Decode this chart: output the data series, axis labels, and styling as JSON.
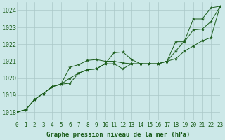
{
  "xlabel": "Graphe pression niveau de la mer (hPa)",
  "background_color": "#cce8e8",
  "grid_color": "#aac8c8",
  "line_color": "#1a5c1a",
  "xlim": [
    0,
    23
  ],
  "ylim": [
    1017.5,
    1024.5
  ],
  "yticks": [
    1018,
    1019,
    1020,
    1021,
    1022,
    1023,
    1024
  ],
  "xticks": [
    0,
    1,
    2,
    3,
    4,
    5,
    6,
    7,
    8,
    9,
    10,
    11,
    12,
    13,
    14,
    15,
    16,
    17,
    18,
    19,
    20,
    21,
    22,
    23
  ],
  "series": [
    {
      "x": [
        0,
        1,
        2,
        3,
        4,
        5,
        6,
        7,
        8,
        9,
        10,
        11,
        12,
        13,
        14,
        15,
        16,
        17,
        18,
        19,
        20,
        21,
        22,
        23
      ],
      "y": [
        1018.0,
        1018.15,
        1018.75,
        1019.1,
        1019.5,
        1019.65,
        1020.65,
        1020.8,
        1021.05,
        1021.1,
        1021.0,
        1021.0,
        1020.9,
        1020.85,
        1020.85,
        1020.85,
        1020.85,
        1021.0,
        1021.6,
        1022.2,
        1023.5,
        1023.5,
        1024.15,
        1024.25
      ]
    },
    {
      "x": [
        0,
        1,
        2,
        3,
        4,
        5,
        6,
        7,
        8,
        9,
        10,
        11,
        12,
        13,
        14,
        15,
        16,
        17,
        18,
        19,
        20,
        21,
        22,
        23
      ],
      "y": [
        1018.0,
        1018.15,
        1018.75,
        1019.1,
        1019.5,
        1019.65,
        1020.0,
        1020.3,
        1020.5,
        1020.55,
        1020.85,
        1021.5,
        1021.55,
        1021.1,
        1020.85,
        1020.85,
        1020.85,
        1021.0,
        1022.15,
        1022.15,
        1022.85,
        1022.9,
        1023.35,
        1024.2
      ]
    },
    {
      "x": [
        0,
        1,
        2,
        3,
        4,
        5,
        6,
        7,
        8,
        9,
        10,
        11,
        12,
        13,
        14,
        15,
        16,
        17,
        18,
        19,
        20,
        21,
        22,
        23
      ],
      "y": [
        1018.0,
        1018.15,
        1018.75,
        1019.1,
        1019.5,
        1019.65,
        1019.7,
        1020.3,
        1020.5,
        1020.55,
        1020.85,
        1020.85,
        1020.55,
        1020.85,
        1020.85,
        1020.85,
        1020.85,
        1021.0,
        1021.15,
        1021.6,
        1021.9,
        1022.2,
        1022.4,
        1024.2
      ]
    }
  ],
  "tick_fontsize": 5.5,
  "xlabel_fontsize": 6.5
}
